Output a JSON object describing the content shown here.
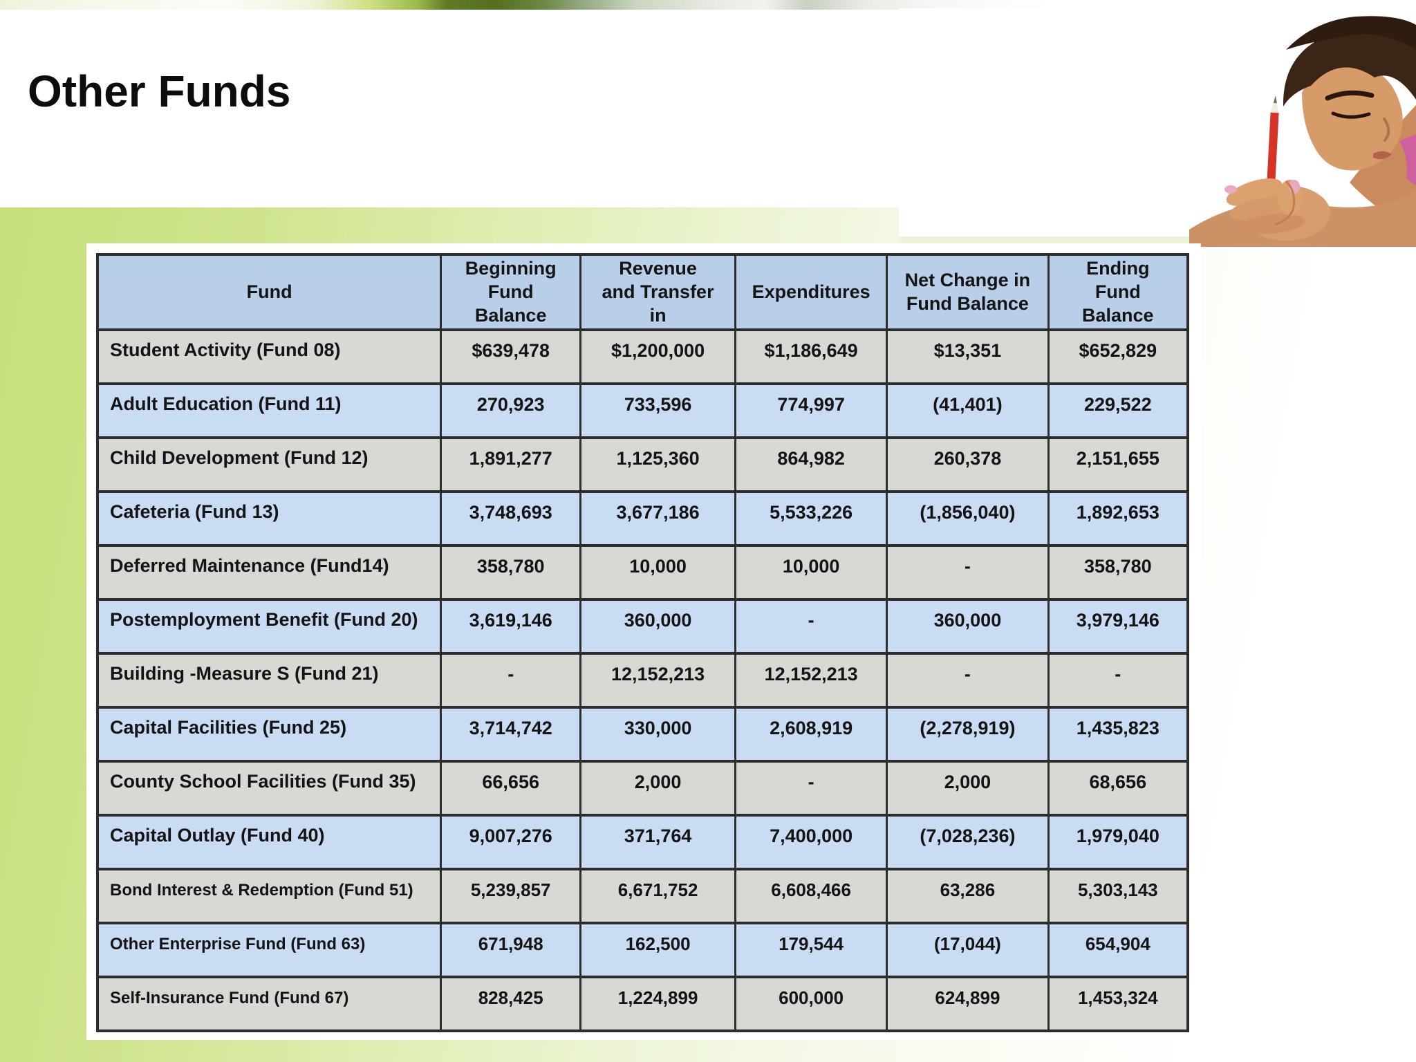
{
  "slide": {
    "title": "Other Funds"
  },
  "table": {
    "columns": [
      "Fund",
      "Beginning\nFund\nBalance",
      "Revenue\nand Transfer\nin",
      "Expenditures",
      "Net Change in\nFund Balance",
      "Ending\nFund\nBalance"
    ],
    "rows": [
      {
        "fund": "Student Activity (Fund 08)",
        "beginning": "$639,478",
        "revenue": "$1,200,000",
        "expenditures": "$1,186,649",
        "net_change": "$13,351",
        "ending": "$652,829"
      },
      {
        "fund": "Adult Education (Fund 11)",
        "beginning": "270,923",
        "revenue": "733,596",
        "expenditures": "774,997",
        "net_change": "(41,401)",
        "ending": "229,522"
      },
      {
        "fund": "Child Development (Fund 12)",
        "beginning": "1,891,277",
        "revenue": "1,125,360",
        "expenditures": "864,982",
        "net_change": "260,378",
        "ending": "2,151,655"
      },
      {
        "fund": "Cafeteria (Fund 13)",
        "beginning": "3,748,693",
        "revenue": "3,677,186",
        "expenditures": "5,533,226",
        "net_change": "(1,856,040)",
        "ending": "1,892,653"
      },
      {
        "fund": "Deferred Maintenance (Fund14)",
        "beginning": "358,780",
        "revenue": "10,000",
        "expenditures": "10,000",
        "net_change": "-",
        "ending": "358,780"
      },
      {
        "fund": "Postemployment Benefit (Fund 20)",
        "beginning": "3,619,146",
        "revenue": "360,000",
        "expenditures": "-",
        "net_change": "360,000",
        "ending": "3,979,146"
      },
      {
        "fund": "Building -Measure S (Fund 21)",
        "beginning": "-",
        "revenue": "12,152,213",
        "expenditures": "12,152,213",
        "net_change": "-",
        "ending": "-"
      },
      {
        "fund": "Capital Facilities (Fund 25)",
        "beginning": "3,714,742",
        "revenue": "330,000",
        "expenditures": "2,608,919",
        "net_change": "(2,278,919)",
        "ending": "1,435,823"
      },
      {
        "fund": "County School Facilities (Fund 35)",
        "beginning": "66,656",
        "revenue": "2,000",
        "expenditures": "-",
        "net_change": "2,000",
        "ending": "68,656"
      },
      {
        "fund": "Capital Outlay (Fund 40)",
        "beginning": "9,007,276",
        "revenue": "371,764",
        "expenditures": "7,400,000",
        "net_change": "(7,028,236)",
        "ending": "1,979,040"
      },
      {
        "fund": "Bond Interest & Redemption (Fund 51)",
        "beginning": "5,239,857",
        "revenue": "6,671,752",
        "expenditures": "6,608,466",
        "net_change": "63,286",
        "ending": "5,303,143"
      },
      {
        "fund": "Other Enterprise Fund (Fund 63)",
        "beginning": "671,948",
        "revenue": "162,500",
        "expenditures": "179,544",
        "net_change": "(17,044)",
        "ending": "654,904"
      },
      {
        "fund": "Self-Insurance Fund (Fund 67)",
        "beginning": "828,425",
        "revenue": "1,224,899",
        "expenditures": "600,000",
        "net_change": "624,899",
        "ending": "1,453,324"
      }
    ]
  },
  "colors": {
    "header_row": "#b9cfe9",
    "row_gray": "#d8d8d4",
    "row_blue": "#c9dcf3",
    "table_border": "#2c2c2c",
    "slide_green": "#c6df7a",
    "pencil_red": "#d63226"
  }
}
